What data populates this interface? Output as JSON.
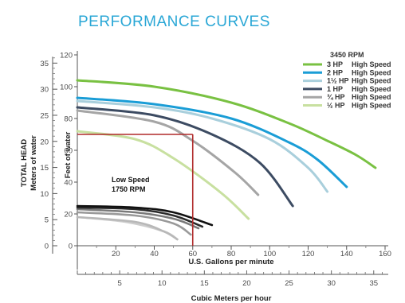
{
  "chart_data": {
    "type": "line",
    "title": "PERFORMANCE CURVES",
    "xlabel": "U.S. Gallons per minute",
    "x2label": "Cubic Meters per hour",
    "ylabel": "Feet of water",
    "y2label_line1": "TOTAL HEAD",
    "y2label_line2": "Meters of water",
    "xlim": [
      0,
      160
    ],
    "ylim": [
      0,
      120
    ],
    "x_ticks": [
      20,
      40,
      60,
      80,
      100,
      120,
      140,
      160
    ],
    "y_ticks": [
      0,
      20,
      40,
      60,
      80,
      100,
      120
    ],
    "m3h_ticks": [
      5,
      10,
      15,
      20,
      25,
      30,
      35
    ],
    "meters_ticks": [
      0,
      5,
      10,
      15,
      20,
      25,
      30,
      35
    ],
    "legend_title": "3450 RPM",
    "legend_placement": "top-right",
    "low_speed_line1": "Low Speed",
    "low_speed_line2": "1750 RPM",
    "reference_point": {
      "x": 60,
      "y": 70,
      "color": "#b02a2a"
    },
    "series": [
      {
        "name": "3 HP",
        "label2": "High Speed",
        "color": "#79c142",
        "x": [
          0,
          40,
          80,
          110,
          130,
          145,
          155
        ],
        "y": [
          104,
          100,
          90,
          77,
          66,
          57,
          49
        ]
      },
      {
        "name": "2 HP",
        "label2": "High Speed",
        "color": "#1a9dd6",
        "x": [
          0,
          40,
          80,
          110,
          125,
          140
        ],
        "y": [
          93,
          89,
          80,
          65,
          54,
          37
        ]
      },
      {
        "name": "1½ HP",
        "label2": "High Speed",
        "color": "#a9cfdc",
        "x": [
          0,
          40,
          70,
          100,
          120,
          130
        ],
        "y": [
          91,
          87,
          80,
          67,
          49,
          34
        ]
      },
      {
        "name": "1 HP",
        "label2": "High Speed",
        "color": "#3c4b62",
        "x": [
          0,
          40,
          70,
          95,
          112
        ],
        "y": [
          87,
          82,
          70,
          52,
          25
        ]
      },
      {
        "name": "¾ HP",
        "label2": "High Speed",
        "color": "#a5a5a5",
        "x": [
          0,
          40,
          60,
          82,
          94
        ],
        "y": [
          85,
          78,
          66,
          46,
          32
        ]
      },
      {
        "name": "½ HP",
        "label2": "High Speed",
        "color": "#c8e0a0",
        "x": [
          0,
          30,
          50,
          75,
          89
        ],
        "y": [
          72,
          67,
          55,
          33,
          17
        ]
      }
    ],
    "low_speed_series": [
      {
        "name": "3 HP",
        "color": "#111111",
        "x": [
          0,
          30,
          50,
          70
        ],
        "y": [
          25,
          24,
          21,
          13
        ]
      },
      {
        "name": "2 HP",
        "color": "#2a2a2a",
        "x": [
          0,
          30,
          50,
          65
        ],
        "y": [
          24,
          23,
          19,
          12
        ]
      },
      {
        "name": "1½ HP",
        "color": "#7a7a7a",
        "x": [
          0,
          30,
          50,
          63
        ],
        "y": [
          23,
          21,
          17,
          11
        ]
      },
      {
        "name": "1 HP",
        "color": "#999999",
        "x": [
          0,
          30,
          50,
          59
        ],
        "y": [
          21,
          19,
          14,
          7
        ]
      },
      {
        "name": "¾ HP",
        "color": "#b8b8b8",
        "x": [
          0,
          30,
          45,
          52
        ],
        "y": [
          18,
          15,
          9,
          4
        ]
      },
      {
        "name": "½ HP",
        "color": "#cccccc",
        "x": [
          0,
          25,
          45,
          52
        ],
        "y": [
          18,
          15,
          9,
          4
        ]
      }
    ]
  }
}
